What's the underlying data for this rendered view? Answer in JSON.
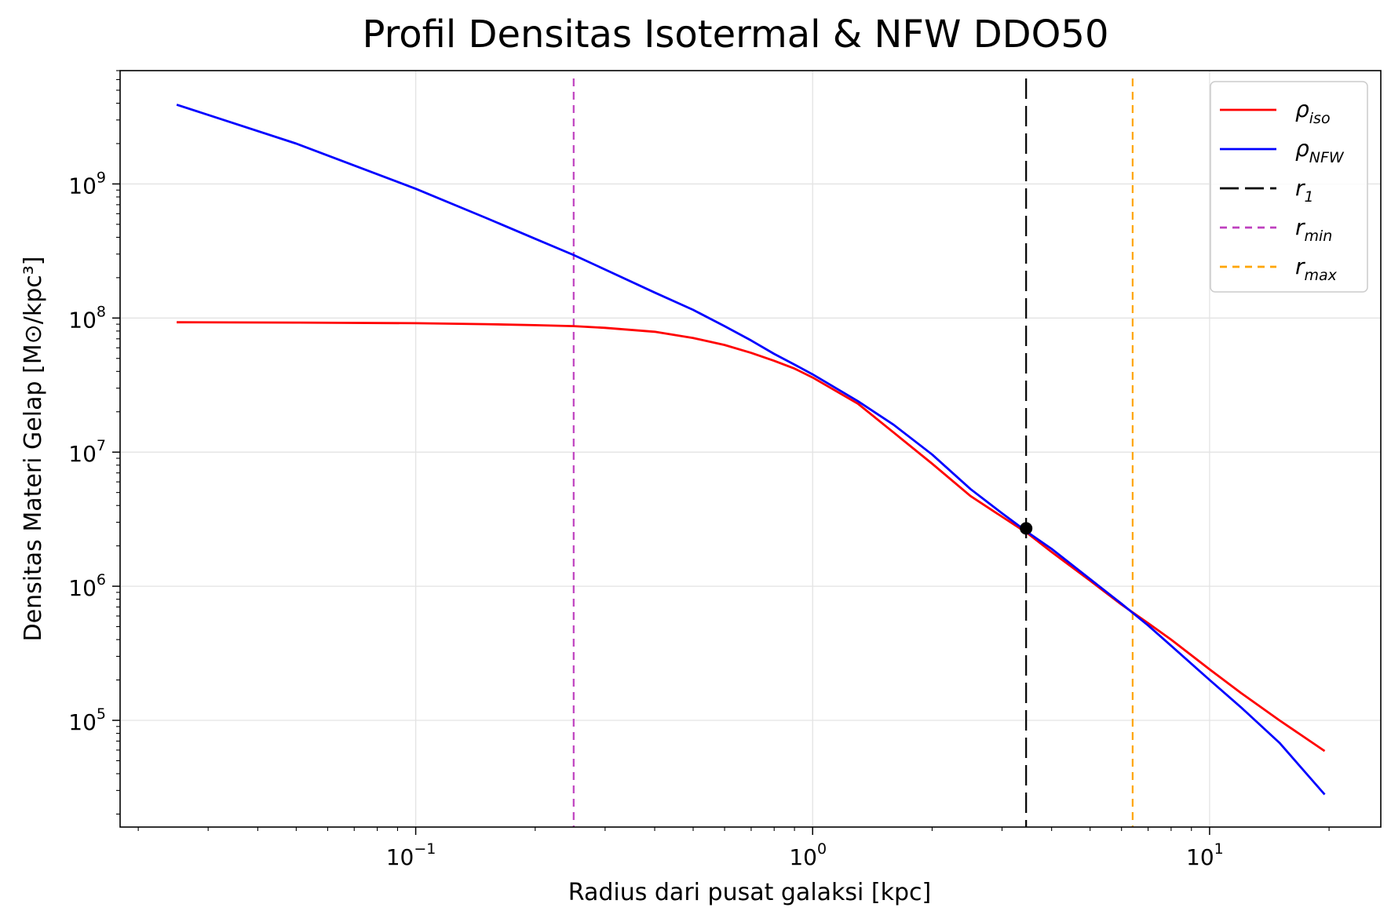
{
  "chart_data": {
    "type": "line",
    "title": "Profil Densitas Isotermal & NFW DDO50",
    "xlabel": "Radius dari pusat galaksi [kpc]",
    "ylabel": "Densitas Materi Gelap [M⊙/kpc³]",
    "xscale": "log",
    "yscale": "log",
    "xlim": [
      0.018,
      27
    ],
    "ylim": [
      16000,
      7000000000
    ],
    "grid": true,
    "legend_position": "top-right",
    "x_ticks": [
      {
        "value": 0.1,
        "label": "10",
        "exp": "−1"
      },
      {
        "value": 1,
        "label": "10",
        "exp": "0"
      },
      {
        "value": 10,
        "label": "10",
        "exp": "1"
      }
    ],
    "y_ticks": [
      {
        "value": 100000,
        "label": "10",
        "exp": "5"
      },
      {
        "value": 1000000,
        "label": "10",
        "exp": "6"
      },
      {
        "value": 10000000,
        "label": "10",
        "exp": "7"
      },
      {
        "value": 100000000,
        "label": "10",
        "exp": "8"
      },
      {
        "value": 1000000000,
        "label": "10",
        "exp": "9"
      }
    ],
    "series": [
      {
        "name": "ρiso",
        "symbol": "ρ",
        "sub": "iso",
        "color": "#ff0000",
        "style": "solid",
        "points": [
          [
            0.025,
            93000000.0
          ],
          [
            0.05,
            92500000.0
          ],
          [
            0.1,
            91500000.0
          ],
          [
            0.15,
            90000000.0
          ],
          [
            0.2,
            88500000.0
          ],
          [
            0.25,
            87000000.0
          ],
          [
            0.3,
            84500000.0
          ],
          [
            0.4,
            79000000.0
          ],
          [
            0.5,
            71000000.0
          ],
          [
            0.6,
            63000000.0
          ],
          [
            0.7,
            55000000.0
          ],
          [
            0.8,
            48000000.0
          ],
          [
            0.9,
            42000000.0
          ],
          [
            1.0,
            36000000.0
          ],
          [
            1.3,
            23000000.0
          ],
          [
            1.6,
            14000000.0
          ],
          [
            2.0,
            8200000.0
          ],
          [
            2.5,
            4700000.0
          ],
          [
            3.0,
            3300000.0
          ],
          [
            3.5,
            2450000.0
          ],
          [
            4.0,
            1800000.0
          ],
          [
            5.0,
            1100000.0
          ],
          [
            6.0,
            730000.0
          ],
          [
            7.0,
            530000.0
          ],
          [
            8.0,
            400000.0
          ],
          [
            10.0,
            240000.0
          ],
          [
            12.0,
            160000.0
          ],
          [
            15.0,
            100000.0
          ],
          [
            19.5,
            59000.0
          ]
        ]
      },
      {
        "name": "ρNFW",
        "symbol": "ρ",
        "sub": "NFW",
        "color": "#0000ff",
        "style": "solid",
        "points": [
          [
            0.025,
            3900000000.0
          ],
          [
            0.05,
            2000000000.0
          ],
          [
            0.1,
            920000000.0
          ],
          [
            0.15,
            560000000.0
          ],
          [
            0.2,
            390000000.0
          ],
          [
            0.25,
            295000000.0
          ],
          [
            0.3,
            230000000.0
          ],
          [
            0.4,
            155000000.0
          ],
          [
            0.5,
            115000000.0
          ],
          [
            0.6,
            87000000.0
          ],
          [
            0.7,
            68000000.0
          ],
          [
            0.8,
            54000000.0
          ],
          [
            0.9,
            45000000.0
          ],
          [
            1.0,
            38000000.0
          ],
          [
            1.3,
            24000000.0
          ],
          [
            1.6,
            16000000.0
          ],
          [
            2.0,
            9600000.0
          ],
          [
            2.5,
            5300000.0
          ],
          [
            3.0,
            3500000.0
          ],
          [
            3.5,
            2500000.0
          ],
          [
            4.0,
            1900000.0
          ],
          [
            5.0,
            1130000.0
          ],
          [
            6.0,
            740000.0
          ],
          [
            7.0,
            510000.0
          ],
          [
            8.0,
            360000.0
          ],
          [
            10.0,
            200000.0
          ],
          [
            12.0,
            125000.0
          ],
          [
            15.0,
            68000.0
          ],
          [
            19.5,
            28000.0
          ]
        ]
      }
    ],
    "vlines": [
      {
        "name": "r1",
        "symbol": "r",
        "sub": "1",
        "x": 3.45,
        "color": "#000000",
        "dash": "26,9"
      },
      {
        "name": "rmin",
        "symbol": "r",
        "sub": "min",
        "x": 0.25,
        "color": "#bf40bf",
        "dash": "10,7"
      },
      {
        "name": "rmax",
        "symbol": "r",
        "sub": "max",
        "x": 6.4,
        "color": "#ffa500",
        "dash": "10,7"
      }
    ],
    "marker": {
      "x": 3.45,
      "y": 2700000.0,
      "color": "#000000"
    }
  }
}
